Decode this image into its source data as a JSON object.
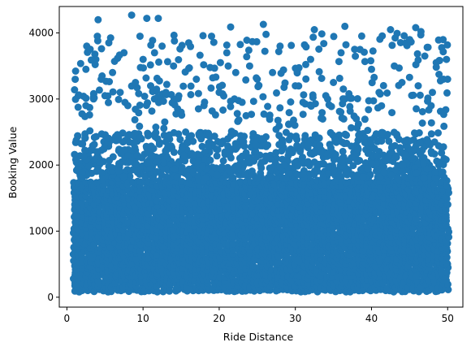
{
  "chart_data": {
    "type": "scatter",
    "title": "",
    "xlabel": "Ride Distance",
    "ylabel": "Booking Value",
    "xlim": [
      -1,
      52
    ],
    "ylim": [
      -150,
      4400
    ],
    "x_ticks": [
      0,
      10,
      20,
      30,
      40,
      50
    ],
    "y_ticks": [
      0,
      1000,
      2000,
      3000,
      4000
    ],
    "grid": false,
    "legend": "none",
    "marker_color": "#1f77b4",
    "series": [
      {
        "x_range": [
          1,
          50
        ],
        "dense_band": [
          100,
          1800
        ],
        "mid_band": [
          1800,
          2500
        ],
        "sparse_points": [
          [
            1,
            3140
          ],
          [
            1.5,
            3050
          ],
          [
            2.5,
            2900
          ],
          [
            2.5,
            3450
          ],
          [
            2.6,
            3800
          ],
          [
            3,
            2870
          ],
          [
            3.5,
            3000
          ],
          [
            3.8,
            3600
          ],
          [
            4,
            3950
          ],
          [
            4.1,
            4200
          ],
          [
            4.5,
            3300
          ],
          [
            5,
            3050
          ],
          [
            5.5,
            3850
          ],
          [
            6,
            3400
          ],
          [
            7,
            3100
          ],
          [
            7.5,
            3700
          ],
          [
            8,
            2900
          ],
          [
            8.5,
            4270
          ],
          [
            9,
            3250
          ],
          [
            9.6,
            3950
          ],
          [
            10,
            3600
          ],
          [
            10.5,
            4220
          ],
          [
            11,
            3200
          ],
          [
            11.5,
            3000
          ],
          [
            12,
            4220
          ],
          [
            12.5,
            3800
          ],
          [
            13,
            3100
          ],
          [
            14,
            3500
          ],
          [
            15,
            2800
          ],
          [
            16,
            3850
          ],
          [
            17,
            3300
          ],
          [
            18,
            2900
          ],
          [
            19,
            3950
          ],
          [
            20,
            3100
          ],
          [
            21,
            3700
          ],
          [
            21.5,
            4090
          ],
          [
            22,
            3000
          ],
          [
            24,
            3500
          ],
          [
            25,
            3300
          ],
          [
            25.8,
            4130
          ],
          [
            27,
            3400
          ],
          [
            28,
            3800
          ],
          [
            30,
            3200
          ],
          [
            31,
            2950
          ],
          [
            32,
            3600
          ],
          [
            32.5,
            4050
          ],
          [
            34,
            3050
          ],
          [
            35,
            3250
          ],
          [
            36,
            3700
          ],
          [
            36.5,
            4100
          ],
          [
            38,
            2700
          ],
          [
            38.5,
            3750
          ],
          [
            40,
            3450
          ],
          [
            41,
            3100
          ],
          [
            42.5,
            4050
          ],
          [
            43,
            3500
          ],
          [
            44,
            3250
          ],
          [
            45,
            3900
          ],
          [
            45.8,
            4080
          ],
          [
            46.5,
            4020
          ],
          [
            47,
            3650
          ],
          [
            48,
            3100
          ],
          [
            48.5,
            3550
          ],
          [
            49.4,
            3900
          ],
          [
            50,
            3300
          ]
        ]
      }
    ]
  }
}
